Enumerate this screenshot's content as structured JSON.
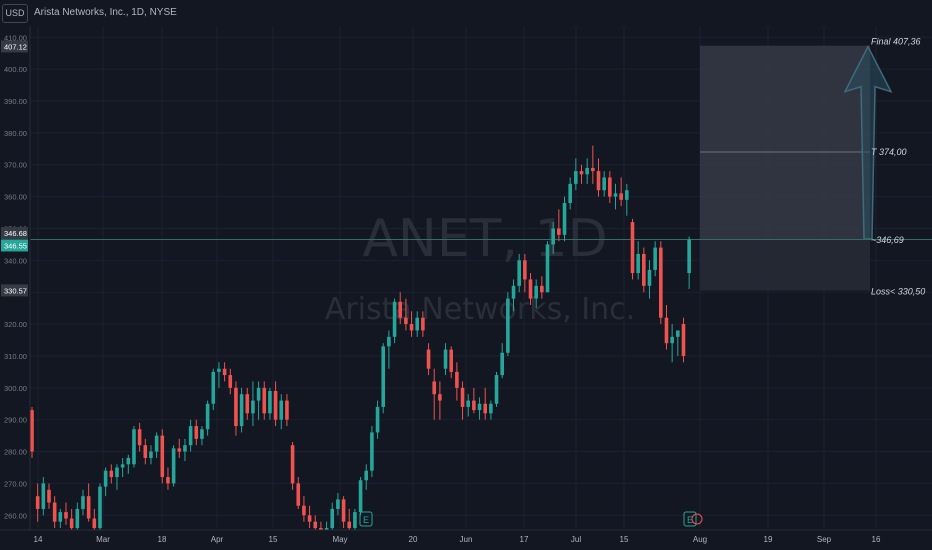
{
  "header": {
    "currency": "USD",
    "symbol_title": "Arista Networks, Inc., 1D, NYSE"
  },
  "watermark": {
    "symbol": "ANET, 1D",
    "name": "Arista Networks, Inc."
  },
  "colors": {
    "background": "#131722",
    "up": "#26a69a",
    "down": "#ef5350",
    "projection_box": "#2a2e39",
    "arrow": "#2c4f5f"
  },
  "price_badges": [
    {
      "text": "407.12",
      "style": "gray"
    },
    {
      "text": "346.68",
      "style": "gray"
    },
    {
      "text": "346.55",
      "style": "green"
    },
    {
      "text": "330.57",
      "style": "gray"
    }
  ],
  "annotations": {
    "final": "Final 407,36",
    "target": "T 374,00",
    "entry": "~346,69",
    "loss": "Loss< 330,50"
  },
  "earnings_marker": "E",
  "chart_data": {
    "type": "candlestick",
    "title": "Arista Networks, Inc., 1D, NYSE",
    "ylabel": "",
    "xlabel": "",
    "ylim": [
      256.5,
      413
    ],
    "y_ticks": [
      260,
      270,
      280,
      290,
      300,
      310,
      320,
      330,
      340,
      350,
      360,
      370,
      380,
      390,
      400,
      410
    ],
    "x_tick_labels": [
      "14",
      "Mar",
      "18",
      "Apr",
      "15",
      "May",
      "20",
      "Jun",
      "17",
      "Jul",
      "15",
      "Aug",
      "19",
      "Sep",
      "16"
    ],
    "projection": {
      "entry": 346.69,
      "target": 374.0,
      "final": 407.36,
      "stop_loss": 330.5
    },
    "current_price": 346.55,
    "candles": [
      {
        "o": 293,
        "h": 294,
        "l": 278,
        "c": 280
      },
      {
        "o": 266,
        "h": 270,
        "l": 258,
        "c": 262
      },
      {
        "o": 262,
        "h": 272,
        "l": 260,
        "c": 270
      },
      {
        "o": 268,
        "h": 270,
        "l": 262,
        "c": 264
      },
      {
        "o": 264,
        "h": 266,
        "l": 256,
        "c": 258
      },
      {
        "o": 258,
        "h": 262,
        "l": 256,
        "c": 261
      },
      {
        "o": 261,
        "h": 264,
        "l": 257,
        "c": 259
      },
      {
        "o": 259,
        "h": 262,
        "l": 255,
        "c": 256
      },
      {
        "o": 256,
        "h": 264,
        "l": 255,
        "c": 262
      },
      {
        "o": 262,
        "h": 268,
        "l": 260,
        "c": 266
      },
      {
        "o": 266,
        "h": 270,
        "l": 258,
        "c": 259
      },
      {
        "o": 259,
        "h": 262,
        "l": 254,
        "c": 256
      },
      {
        "o": 256,
        "h": 270,
        "l": 255,
        "c": 269
      },
      {
        "o": 269,
        "h": 275,
        "l": 266,
        "c": 274
      },
      {
        "o": 274,
        "h": 276,
        "l": 270,
        "c": 272
      },
      {
        "o": 272,
        "h": 276,
        "l": 268,
        "c": 275
      },
      {
        "o": 275,
        "h": 278,
        "l": 272,
        "c": 276
      },
      {
        "o": 276,
        "h": 279,
        "l": 273,
        "c": 278
      },
      {
        "o": 276,
        "h": 288,
        "l": 275,
        "c": 287
      },
      {
        "o": 287,
        "h": 289,
        "l": 280,
        "c": 282
      },
      {
        "o": 282,
        "h": 284,
        "l": 276,
        "c": 278
      },
      {
        "o": 278,
        "h": 282,
        "l": 276,
        "c": 280
      },
      {
        "o": 280,
        "h": 286,
        "l": 278,
        "c": 285
      },
      {
        "o": 285,
        "h": 287,
        "l": 270,
        "c": 272
      },
      {
        "o": 272,
        "h": 275,
        "l": 268,
        "c": 270
      },
      {
        "o": 270,
        "h": 282,
        "l": 269,
        "c": 281
      },
      {
        "o": 281,
        "h": 284,
        "l": 278,
        "c": 280
      },
      {
        "o": 280,
        "h": 284,
        "l": 277,
        "c": 282
      },
      {
        "o": 282,
        "h": 290,
        "l": 280,
        "c": 288
      },
      {
        "o": 288,
        "h": 290,
        "l": 282,
        "c": 284
      },
      {
        "o": 284,
        "h": 288,
        "l": 282,
        "c": 287
      },
      {
        "o": 287,
        "h": 296,
        "l": 285,
        "c": 295
      },
      {
        "o": 295,
        "h": 306,
        "l": 293,
        "c": 305
      },
      {
        "o": 305,
        "h": 308,
        "l": 300,
        "c": 306
      },
      {
        "o": 306,
        "h": 308,
        "l": 302,
        "c": 304
      },
      {
        "o": 304,
        "h": 306,
        "l": 298,
        "c": 300
      },
      {
        "o": 300,
        "h": 302,
        "l": 285,
        "c": 288
      },
      {
        "o": 288,
        "h": 300,
        "l": 286,
        "c": 298
      },
      {
        "o": 298,
        "h": 300,
        "l": 290,
        "c": 292
      },
      {
        "o": 292,
        "h": 302,
        "l": 288,
        "c": 296
      },
      {
        "o": 296,
        "h": 302,
        "l": 290,
        "c": 300
      },
      {
        "o": 300,
        "h": 302,
        "l": 290,
        "c": 292
      },
      {
        "o": 292,
        "h": 300,
        "l": 290,
        "c": 299
      },
      {
        "o": 299,
        "h": 302,
        "l": 288,
        "c": 290
      },
      {
        "o": 290,
        "h": 298,
        "l": 287,
        "c": 296
      },
      {
        "o": 296,
        "h": 298,
        "l": 288,
        "c": 290
      },
      {
        "o": 282,
        "h": 283,
        "l": 268,
        "c": 270
      },
      {
        "o": 270,
        "h": 272,
        "l": 262,
        "c": 263
      },
      {
        "o": 263,
        "h": 266,
        "l": 258,
        "c": 260
      },
      {
        "o": 260,
        "h": 263,
        "l": 256,
        "c": 258
      },
      {
        "o": 258,
        "h": 260,
        "l": 254,
        "c": 256
      },
      {
        "o": 256,
        "h": 258,
        "l": 252,
        "c": 254
      },
      {
        "o": 254,
        "h": 258,
        "l": 252,
        "c": 256
      },
      {
        "o": 256,
        "h": 264,
        "l": 254,
        "c": 262
      },
      {
        "o": 262,
        "h": 267,
        "l": 260,
        "c": 265
      },
      {
        "o": 265,
        "h": 266,
        "l": 256,
        "c": 258
      },
      {
        "o": 258,
        "h": 262,
        "l": 254,
        "c": 256
      },
      {
        "o": 256,
        "h": 262,
        "l": 255,
        "c": 261
      },
      {
        "o": 261,
        "h": 272,
        "l": 260,
        "c": 271
      },
      {
        "o": 271,
        "h": 276,
        "l": 268,
        "c": 274
      },
      {
        "o": 274,
        "h": 288,
        "l": 272,
        "c": 286
      },
      {
        "o": 286,
        "h": 296,
        "l": 284,
        "c": 294
      },
      {
        "o": 294,
        "h": 314,
        "l": 292,
        "c": 313
      },
      {
        "o": 313,
        "h": 318,
        "l": 306,
        "c": 316
      },
      {
        "o": 316,
        "h": 328,
        "l": 314,
        "c": 327
      },
      {
        "o": 327,
        "h": 330,
        "l": 320,
        "c": 322
      },
      {
        "o": 322,
        "h": 328,
        "l": 318,
        "c": 320
      },
      {
        "o": 320,
        "h": 324,
        "l": 316,
        "c": 318
      },
      {
        "o": 318,
        "h": 324,
        "l": 316,
        "c": 322
      },
      {
        "o": 322,
        "h": 324,
        "l": 316,
        "c": 318
      },
      {
        "o": 312,
        "h": 314,
        "l": 304,
        "c": 306
      },
      {
        "o": 302,
        "h": 306,
        "l": 290,
        "c": 298
      },
      {
        "o": 298,
        "h": 302,
        "l": 290,
        "c": 296
      },
      {
        "o": 306,
        "h": 314,
        "l": 304,
        "c": 312
      },
      {
        "o": 312,
        "h": 313,
        "l": 303,
        "c": 305
      },
      {
        "o": 305,
        "h": 308,
        "l": 296,
        "c": 300
      },
      {
        "o": 300,
        "h": 302,
        "l": 290,
        "c": 294
      },
      {
        "o": 294,
        "h": 298,
        "l": 291,
        "c": 296
      },
      {
        "o": 296,
        "h": 300,
        "l": 292,
        "c": 293
      },
      {
        "o": 293,
        "h": 297,
        "l": 290,
        "c": 295
      },
      {
        "o": 295,
        "h": 300,
        "l": 290,
        "c": 292
      },
      {
        "o": 292,
        "h": 296,
        "l": 290,
        "c": 295
      },
      {
        "o": 295,
        "h": 305,
        "l": 294,
        "c": 304
      },
      {
        "o": 304,
        "h": 314,
        "l": 303,
        "c": 311
      },
      {
        "o": 311,
        "h": 330,
        "l": 310,
        "c": 328
      },
      {
        "o": 328,
        "h": 334,
        "l": 324,
        "c": 332
      },
      {
        "o": 332,
        "h": 342,
        "l": 330,
        "c": 340
      },
      {
        "o": 340,
        "h": 342,
        "l": 330,
        "c": 334
      },
      {
        "o": 334,
        "h": 336,
        "l": 326,
        "c": 328
      },
      {
        "o": 328,
        "h": 334,
        "l": 325,
        "c": 332
      },
      {
        "o": 332,
        "h": 335,
        "l": 328,
        "c": 330
      },
      {
        "o": 330,
        "h": 346,
        "l": 330,
        "c": 345
      },
      {
        "o": 345,
        "h": 352,
        "l": 342,
        "c": 350
      },
      {
        "o": 350,
        "h": 356,
        "l": 346,
        "c": 348
      },
      {
        "o": 348,
        "h": 360,
        "l": 346,
        "c": 358
      },
      {
        "o": 358,
        "h": 366,
        "l": 356,
        "c": 364
      },
      {
        "o": 364,
        "h": 372,
        "l": 362,
        "c": 368
      },
      {
        "o": 368,
        "h": 370,
        "l": 364,
        "c": 367
      },
      {
        "o": 367,
        "h": 372,
        "l": 364,
        "c": 369
      },
      {
        "o": 369,
        "h": 376,
        "l": 364,
        "c": 368
      },
      {
        "o": 368,
        "h": 372,
        "l": 360,
        "c": 362
      },
      {
        "o": 362,
        "h": 368,
        "l": 360,
        "c": 366
      },
      {
        "o": 366,
        "h": 368,
        "l": 358,
        "c": 360
      },
      {
        "o": 360,
        "h": 364,
        "l": 356,
        "c": 361
      },
      {
        "o": 361,
        "h": 366,
        "l": 357,
        "c": 359
      },
      {
        "o": 359,
        "h": 364,
        "l": 354,
        "c": 362
      },
      {
        "o": 352,
        "h": 353,
        "l": 334,
        "c": 336
      },
      {
        "o": 336,
        "h": 346,
        "l": 334,
        "c": 342
      },
      {
        "o": 342,
        "h": 344,
        "l": 330,
        "c": 332
      },
      {
        "o": 332,
        "h": 340,
        "l": 328,
        "c": 337
      },
      {
        "o": 337,
        "h": 346,
        "l": 335,
        "c": 344
      },
      {
        "o": 344,
        "h": 346,
        "l": 320,
        "c": 322
      },
      {
        "o": 322,
        "h": 326,
        "l": 312,
        "c": 314
      },
      {
        "o": 314,
        "h": 320,
        "l": 308,
        "c": 316
      },
      {
        "o": 316,
        "h": 318,
        "l": 310,
        "c": 318
      },
      {
        "o": 320,
        "h": 322,
        "l": 308,
        "c": 310
      },
      {
        "o": 336,
        "h": 347.5,
        "l": 331,
        "c": 346.55
      }
    ]
  }
}
